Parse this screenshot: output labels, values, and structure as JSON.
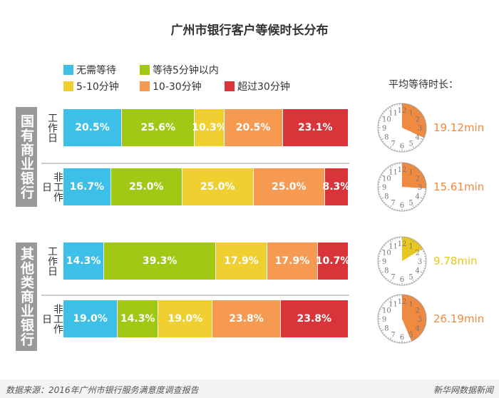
{
  "title": "广州市银行客户等候时长分布",
  "legend": [
    {
      "label": "无需等待",
      "color": "#3cc0e8"
    },
    {
      "label": "等待5分钟以内",
      "color": "#a0c814"
    },
    {
      "label": "5-10分钟",
      "color": "#f0d030"
    },
    {
      "label": "10-30分钟",
      "color": "#f59a50"
    },
    {
      "label": "超过30分钟",
      "color": "#d9343a"
    }
  ],
  "avg_title": "平均等待时长：",
  "groups": [
    {
      "label": "国有商业银行"
    },
    {
      "label": "其他类商业银行"
    }
  ],
  "chart_data": {
    "type": "bar",
    "stacked": true,
    "orientation": "horizontal",
    "title": "广州市银行客户等候时长分布",
    "series_names": [
      "无需等待",
      "等待5分钟以内",
      "5-10分钟",
      "10-30分钟",
      "超过30分钟"
    ],
    "rows": [
      {
        "group": "国有商业银行",
        "day": "工作日",
        "values": [
          20.5,
          25.6,
          10.3,
          20.5,
          23.1
        ],
        "labels": [
          "20.5%",
          "25.6%",
          "10.3%",
          "20.5%",
          "23.1%"
        ],
        "avg": 19.12,
        "avg_label": "19.12min",
        "avg_color": "#f08a40"
      },
      {
        "group": "国有商业银行",
        "day": "非工作日",
        "values": [
          16.7,
          25.0,
          25.0,
          25.0,
          8.3
        ],
        "labels": [
          "16.7%",
          "25.0%",
          "25.0%",
          "25.0%",
          "8.3%"
        ],
        "avg": 15.61,
        "avg_label": "15.61min",
        "avg_color": "#f08a40"
      },
      {
        "group": "其他类商业银行",
        "day": "工作日",
        "values": [
          14.3,
          39.3,
          17.9,
          17.9,
          10.7
        ],
        "labels": [
          "14.3%",
          "39.3%",
          "17.9%",
          "17.9%",
          "10.7%"
        ],
        "avg": 9.78,
        "avg_label": "9.78min",
        "avg_color": "#e8c820"
      },
      {
        "group": "其他类商业银行",
        "day": "非工作日",
        "values": [
          19.0,
          14.3,
          19.0,
          23.8,
          23.8
        ],
        "labels": [
          "19.0%",
          "14.3%",
          "19.0%",
          "23.8%",
          "23.8%"
        ],
        "avg": 26.19,
        "avg_label": "26.19min",
        "avg_color": "#f08a40"
      }
    ]
  },
  "footer": {
    "source": "数据来源：2016年广州市银行服务满意度调查报告",
    "brand": "新华网数据新闻"
  }
}
